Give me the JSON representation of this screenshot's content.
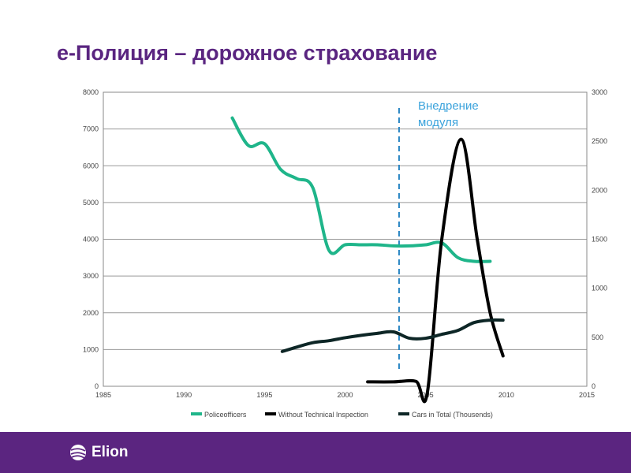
{
  "slide": {
    "title": "e-Полиция – дорожное страхование",
    "logo_text": "Elion"
  },
  "chart_data": {
    "type": "line",
    "title": "",
    "xlim": [
      1985,
      2015
    ],
    "x_ticks": [
      "1985",
      "1990",
      "1995",
      "2000",
      "2005",
      "2010",
      "2015"
    ],
    "ylim_left": [
      0,
      8000
    ],
    "y_ticks_left": [
      "0",
      "1000",
      "2000",
      "3000",
      "4000",
      "5000",
      "6000",
      "7000",
      "8000"
    ],
    "ylim_right": [
      0,
      3000
    ],
    "y_ticks_right": [
      "0",
      "500",
      "1000",
      "1500",
      "2000",
      "2500",
      "3000"
    ],
    "grid": true,
    "legend_placement": "bottom",
    "annotation": {
      "text_line1": "Внедрение",
      "text_line2": "модуля",
      "x": 2003.35,
      "color": "#3ba3dc"
    },
    "series": [
      {
        "name": "Policeofficers",
        "axis": "left",
        "color": "#1fb58a",
        "x": [
          1993,
          1994,
          1995,
          1996,
          1997,
          1998,
          1999,
          2000,
          2001,
          2002,
          2003,
          2004,
          2005,
          2006,
          2007,
          2008,
          2009
        ],
        "y": [
          7300,
          6550,
          6600,
          5900,
          5650,
          5400,
          3700,
          3850,
          3850,
          3850,
          3820,
          3820,
          3850,
          3900,
          3500,
          3400,
          3400
        ]
      },
      {
        "name": "Without Technical Inspection",
        "axis": "right",
        "color": "#000000",
        "x": [
          2001.4,
          2003,
          2004.4,
          2005.1,
          2006,
          2007.2,
          2008.2,
          2009,
          2009.8
        ],
        "y": [
          45,
          45,
          50,
          -70,
          1500,
          2520,
          1500,
          750,
          310
        ]
      },
      {
        "name": "Cars in Total (Thousends)",
        "axis": "right",
        "color": "#0d2626",
        "x": [
          1996.1,
          1997,
          1998,
          1999,
          2000,
          2001,
          2002,
          2003,
          2004,
          2005,
          2006,
          2007,
          2008,
          2009,
          2009.8
        ],
        "y": [
          355,
          400,
          445,
          465,
          495,
          520,
          540,
          555,
          490,
          490,
          530,
          570,
          650,
          675,
          675
        ]
      }
    ]
  }
}
